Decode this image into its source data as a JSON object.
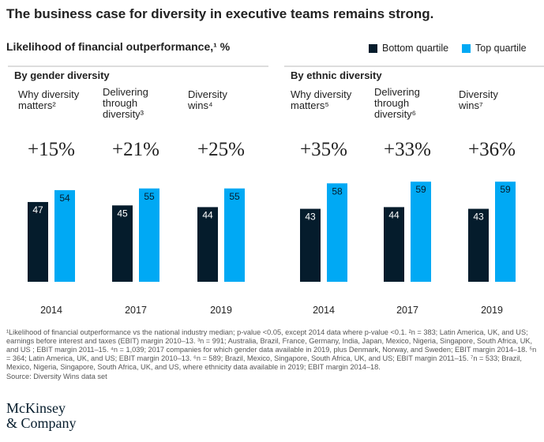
{
  "chart_data": {
    "type": "bar",
    "title": "The business case for diversity in executive teams remains strong.",
    "subtitle": "Likelihood of financial outperformance,¹ %",
    "groups": [
      "By gender diversity",
      "By ethnic diversity"
    ],
    "panel_titles": [
      "Why diversity\nmatters²",
      "Delivering\nthrough\ndiversity³",
      "Diversity\nwins⁴",
      "Why diversity\nmatters⁵",
      "Delivering\nthrough\ndiversity⁶",
      "Diversity\nwins⁷"
    ],
    "annotations": [
      "+15%",
      "+21%",
      "+25%",
      "+35%",
      "+33%",
      "+36%"
    ],
    "categories": [
      "2014",
      "2017",
      "2019",
      "2014",
      "2017",
      "2019"
    ],
    "series": [
      {
        "name": "Bottom quartile",
        "color": "#051c2c",
        "values": [
          47,
          45,
          44,
          43,
          44,
          43
        ]
      },
      {
        "name": "Top quartile",
        "color": "#00a9f4",
        "values": [
          54,
          55,
          55,
          58,
          59,
          59
        ]
      }
    ],
    "footnote": "¹Likelihood of financial outperformance vs the national industry median; p-value <0.05, except 2014 data where p-value <0.1. ²n = 383; Latin America, UK, and US; earnings before interest and taxes (EBIT) margin 2010–13. ³n = 991; Australia, Brazil, France, Germany, India, Japan, Mexico, Nigeria, Singapore, South Africa, UK, and US ; EBIT margin 2011–15. ⁴n = 1,039; 2017 companies for which gender data available in 2019, plus Denmark, Norway, and Sweden; EBIT margin 2014–18. ⁵n = 364; Latin America, UK, and US; EBIT margin 2010–13. ⁶n = 589; Brazil, Mexico, Singapore, South Africa, UK, and US; EBIT margin 2011–15. ⁷n = 533; Brazil, Mexico, Nigeria, Singapore, South Africa, UK, and US, where ethnicity data available in 2019; EBIT margin 2014–18.",
    "source": "Source: Diversity Wins data set",
    "logo": "McKinsey\n& Company"
  }
}
